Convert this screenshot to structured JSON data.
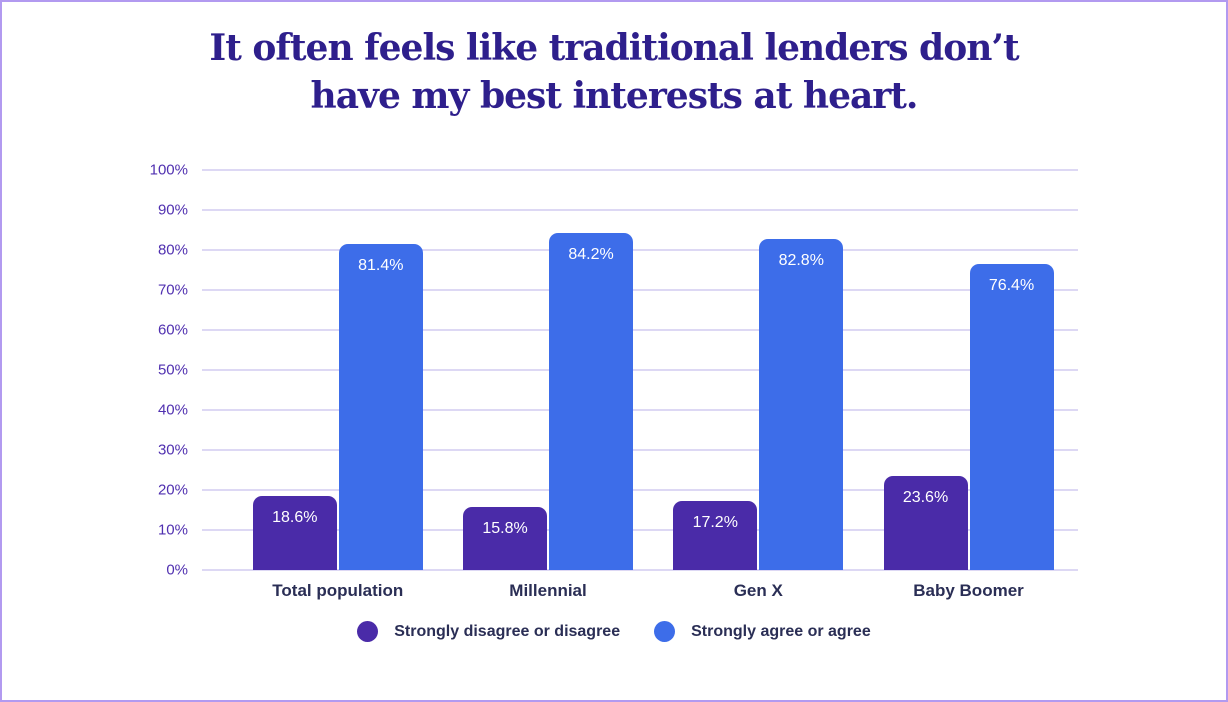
{
  "title": {
    "line1": "It often feels like traditional lenders don’t",
    "line2": "have my best interests at heart."
  },
  "chart_data": {
    "type": "bar",
    "title": "It often feels like traditional lenders don’t have my best interests at heart.",
    "categories": [
      "Total population",
      "Millennial",
      "Gen X",
      "Baby Boomer"
    ],
    "series": [
      {
        "name": "Strongly disagree or disagree",
        "color": "#4a2ba8",
        "values": [
          18.6,
          15.8,
          17.2,
          23.6
        ],
        "labels": [
          "18.6%",
          "15.8%",
          "17.2%",
          "23.6%"
        ]
      },
      {
        "name": "Strongly agree or agree",
        "color": "#3d6de9",
        "values": [
          81.4,
          84.2,
          82.8,
          76.4
        ],
        "labels": [
          "81.4%",
          "84.2%",
          "82.8%",
          "76.4%"
        ]
      }
    ],
    "y_ticks": [
      "0%",
      "10%",
      "20%",
      "30%",
      "40%",
      "50%",
      "60%",
      "70%",
      "80%",
      "90%",
      "100%"
    ],
    "ylim": [
      0,
      100
    ],
    "xlabel": "",
    "ylabel": "",
    "grid": "horizontal",
    "legend_position": "bottom",
    "value_label_position": "inside-top"
  },
  "colors": {
    "title_text": "#2e1f8c",
    "axis_text": "#5030b0",
    "category_text": "#2a2e55",
    "legend_text": "#2a2e55",
    "gridline": "#ddd8f4",
    "value_label_text": "#ffffff",
    "card_border": "#b29af0",
    "background": "#ffffff"
  }
}
